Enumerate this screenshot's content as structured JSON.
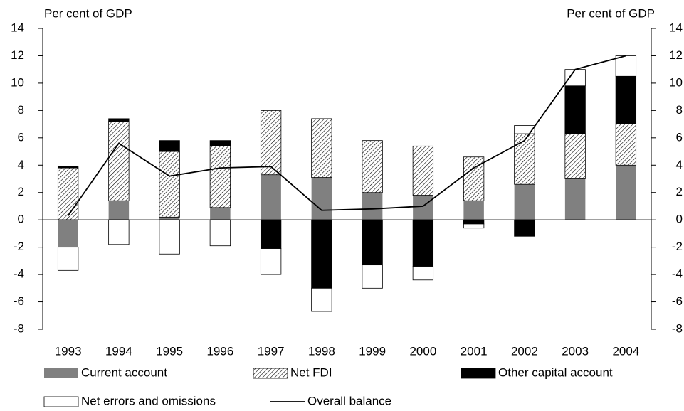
{
  "chart_data": {
    "type": "bar",
    "y_label": "Per cent of GDP",
    "y2_label": "Per cent of GDP",
    "categories": [
      "1993",
      "1994",
      "1995",
      "1996",
      "1997",
      "1998",
      "1999",
      "2000",
      "2001",
      "2002",
      "2003",
      "2004"
    ],
    "series": [
      {
        "name": "Current account",
        "type": "bar",
        "color": "#808080",
        "values": [
          -2.0,
          1.4,
          0.2,
          0.9,
          3.3,
          3.1,
          2.0,
          1.8,
          1.4,
          2.6,
          3.0,
          4.0
        ]
      },
      {
        "name": "Net FDI",
        "type": "bar",
        "color": "#000000",
        "hatch": true,
        "values": [
          3.8,
          5.8,
          4.8,
          4.5,
          4.7,
          4.3,
          3.8,
          3.6,
          3.2,
          3.7,
          3.3,
          3.0
        ]
      },
      {
        "name": "Other capital account",
        "type": "bar",
        "color": "#000000",
        "values": [
          0.1,
          0.2,
          0.8,
          0.4,
          -2.1,
          -5.0,
          -3.3,
          -3.4,
          -0.3,
          -1.2,
          3.5,
          3.5
        ]
      },
      {
        "name": "Net errors and omissions",
        "type": "bar",
        "color": "#ffffff",
        "values": [
          -1.7,
          -1.8,
          -2.5,
          -1.9,
          -1.9,
          -1.7,
          -1.7,
          -1.0,
          -0.3,
          0.6,
          1.2,
          1.5
        ]
      },
      {
        "name": "Overall balance",
        "type": "line",
        "color": "#000000",
        "values": [
          0.3,
          5.6,
          3.2,
          3.8,
          3.9,
          0.7,
          0.8,
          1.0,
          3.8,
          5.8,
          11.0,
          12.0
        ]
      }
    ],
    "ylim": [
      -8,
      14
    ],
    "yticks": [
      -8,
      -6,
      -4,
      -2,
      0,
      2,
      4,
      6,
      8,
      10,
      12,
      14
    ],
    "y2lim": [
      -8,
      14
    ],
    "y2ticks": [
      -8,
      -6,
      -4,
      -2,
      0,
      2,
      4,
      6,
      8,
      10,
      12,
      14
    ],
    "grid": false
  }
}
